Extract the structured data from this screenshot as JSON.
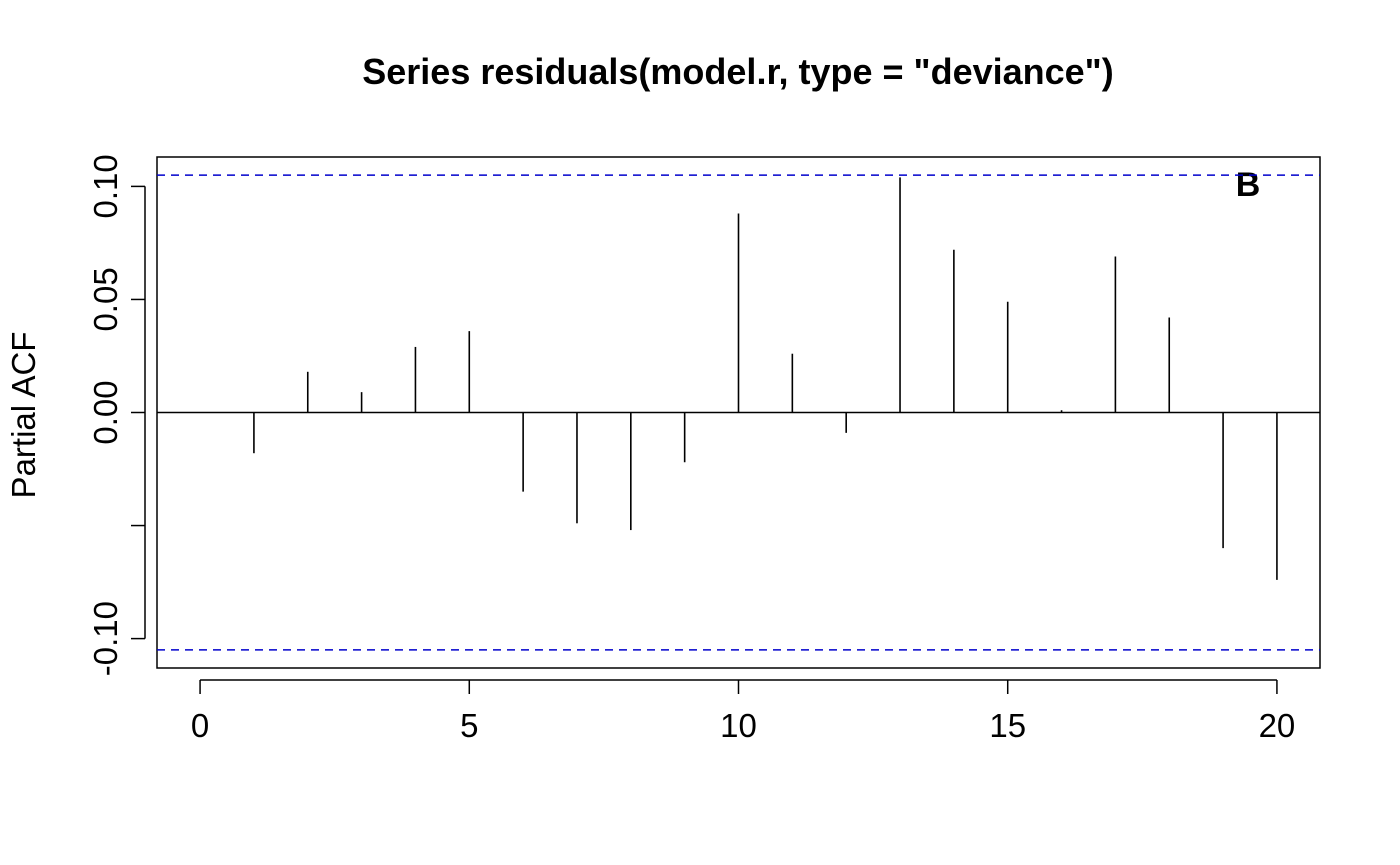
{
  "chart_data": {
    "type": "bar",
    "title": "Series  residuals(model.r, type = \"deviance\")",
    "xlabel": "",
    "ylabel": "Partial ACF",
    "annotation": "B",
    "xlim": [
      -0.8,
      20.8
    ],
    "ylim": [
      -0.113,
      0.113
    ],
    "x_ticks": [
      0,
      5,
      10,
      15,
      20
    ],
    "y_ticks": [
      -0.1,
      0.0,
      0.05,
      0.1
    ],
    "y_tick_labels": [
      "-0.10",
      "0.00",
      "0.05",
      "0.10"
    ],
    "y_tick_marks": [
      -0.1,
      -0.05,
      0.0,
      0.05,
      0.1
    ],
    "confidence_bound": 0.105,
    "zero_line": true,
    "grid": false,
    "colors": {
      "spikes": "#000000",
      "bounds": "#0000cc",
      "axes": "#000000"
    },
    "lags": [
      1,
      2,
      3,
      4,
      5,
      6,
      7,
      8,
      9,
      10,
      11,
      12,
      13,
      14,
      15,
      16,
      17,
      18,
      19,
      20
    ],
    "values": [
      -0.018,
      0.018,
      0.009,
      0.029,
      0.036,
      -0.035,
      -0.049,
      -0.052,
      -0.022,
      0.088,
      0.026,
      -0.009,
      0.104,
      0.072,
      0.049,
      0.001,
      0.069,
      0.042,
      -0.06,
      -0.074
    ]
  }
}
